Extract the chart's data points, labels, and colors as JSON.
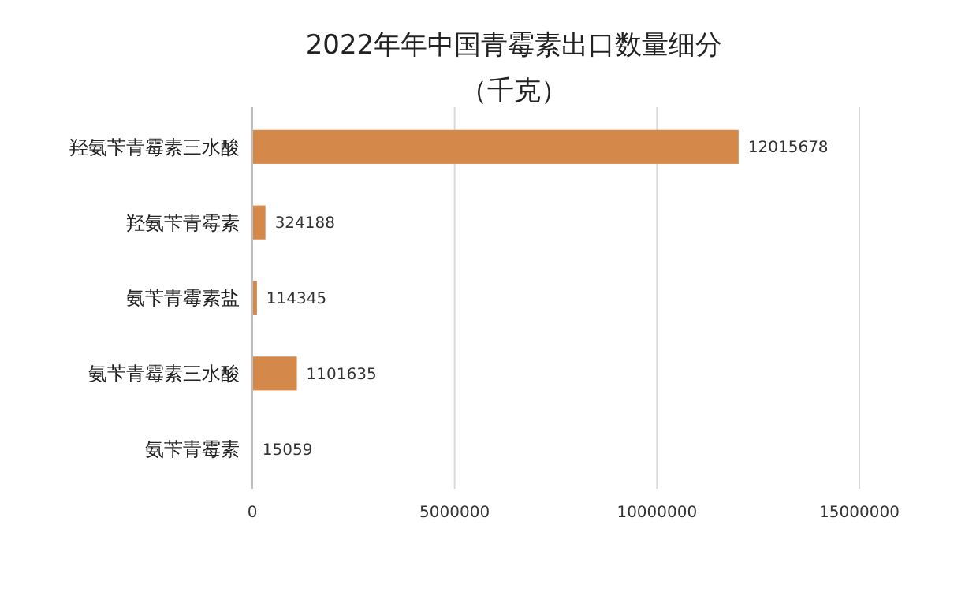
{
  "chart_data": {
    "type": "bar",
    "orientation": "horizontal",
    "title": "2022年年中国青霉素出口数量细分",
    "subtitle": "（千克）",
    "categories": [
      "羟氨苄青霉素三水酸",
      "羟氨苄青霉素",
      "氨苄青霉素盐",
      "氨苄青霉素三水酸",
      "氨苄青霉素"
    ],
    "values": [
      12015678,
      324188,
      114345,
      1101635,
      15059
    ],
    "color": "#d4884a",
    "xlim": [
      0,
      15000000
    ],
    "xticks": [
      0,
      5000000,
      10000000,
      15000000
    ],
    "grid": "x",
    "data_labels": true
  }
}
